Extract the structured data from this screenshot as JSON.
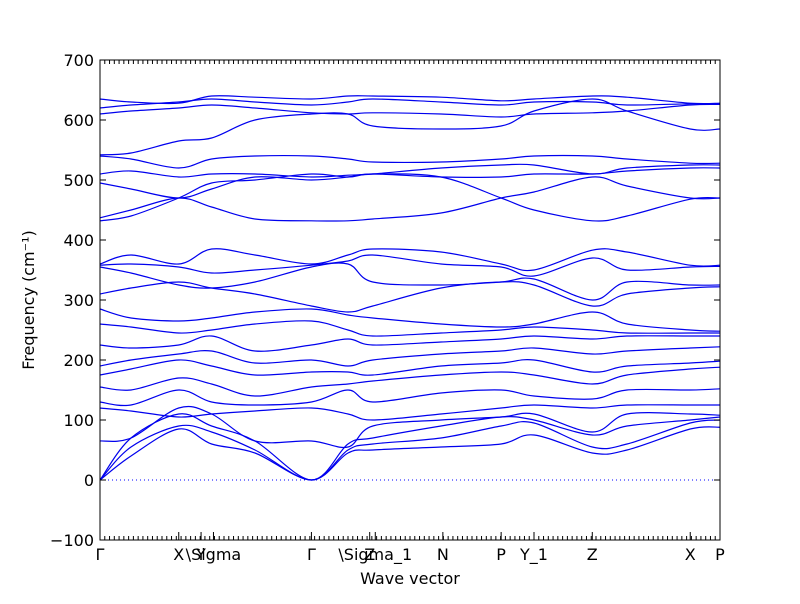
{
  "chart_data": {
    "type": "line",
    "title": "",
    "xlabel": "Wave vector",
    "ylabel": "Frequency (cm⁻¹)",
    "ylim": [
      -100,
      700
    ],
    "yticks": [
      -100,
      0,
      100,
      200,
      300,
      400,
      500,
      600,
      700
    ],
    "xlim": [
      0,
      1
    ],
    "high_symmetry_points": [
      {
        "label": "Γ",
        "x": 0.0
      },
      {
        "label": "X",
        "x": 0.127
      },
      {
        "label": "Y",
        "x": 0.163
      },
      {
        "label": "\\Sigma",
        "x": 0.183
      },
      {
        "label": "Γ",
        "x": 0.341
      },
      {
        "label": "Z",
        "x": 0.435
      },
      {
        "label": "\\Sigma_1",
        "x": 0.444
      },
      {
        "label": "N",
        "x": 0.553
      },
      {
        "label": "P",
        "x": 0.647
      },
      {
        "label": "Y_1",
        "x": 0.7
      },
      {
        "label": "Z",
        "x": 0.794
      },
      {
        "label": "X",
        "x": 0.952
      },
      {
        "label": "P",
        "x": 1.0
      }
    ],
    "zero_line": 0,
    "series": [
      {
        "x": [
          0,
          0.05,
          0.127,
          0.18,
          0.25,
          0.341,
          0.4,
          0.44,
          0.55,
          0.647,
          0.7,
          0.794,
          0.85,
          0.952,
          1.0
        ],
        "y": [
          0,
          40,
          85,
          60,
          45,
          0,
          45,
          50,
          55,
          60,
          75,
          45,
          50,
          85,
          88
        ]
      },
      {
        "x": [
          0,
          0.05,
          0.127,
          0.18,
          0.25,
          0.341,
          0.4,
          0.44,
          0.55,
          0.647,
          0.7,
          0.794,
          0.85,
          0.952,
          1.0
        ],
        "y": [
          0,
          55,
          90,
          80,
          50,
          0,
          50,
          60,
          70,
          90,
          95,
          55,
          60,
          95,
          100
        ]
      },
      {
        "x": [
          0,
          0.05,
          0.127,
          0.18,
          0.25,
          0.341,
          0.4,
          0.44,
          0.55,
          0.647,
          0.7,
          0.794,
          0.85,
          0.952,
          1.0
        ],
        "y": [
          0,
          70,
          110,
          90,
          65,
          0,
          60,
          70,
          90,
          105,
          100,
          75,
          90,
          100,
          105
        ]
      },
      {
        "x": [
          0,
          0.05,
          0.127,
          0.18,
          0.25,
          0.341,
          0.4,
          0.44,
          0.55,
          0.647,
          0.7,
          0.794,
          0.85,
          0.952,
          1.0
        ],
        "y": [
          65,
          70,
          120,
          110,
          65,
          65,
          55,
          90,
          100,
          105,
          110,
          80,
          110,
          110,
          108
        ]
      },
      {
        "x": [
          0,
          0.05,
          0.127,
          0.18,
          0.25,
          0.341,
          0.4,
          0.44,
          0.55,
          0.647,
          0.7,
          0.794,
          0.85,
          0.952,
          1.0
        ],
        "y": [
          120,
          115,
          105,
          110,
          115,
          120,
          110,
          100,
          110,
          120,
          125,
          120,
          125,
          125,
          125
        ]
      },
      {
        "x": [
          0,
          0.05,
          0.127,
          0.18,
          0.25,
          0.341,
          0.4,
          0.44,
          0.55,
          0.647,
          0.7,
          0.794,
          0.85,
          0.952,
          1.0
        ],
        "y": [
          130,
          125,
          150,
          130,
          125,
          130,
          150,
          130,
          145,
          150,
          140,
          135,
          150,
          150,
          152
        ]
      },
      {
        "x": [
          0,
          0.05,
          0.127,
          0.18,
          0.25,
          0.341,
          0.4,
          0.44,
          0.55,
          0.647,
          0.7,
          0.794,
          0.85,
          0.952,
          1.0
        ],
        "y": [
          155,
          150,
          170,
          160,
          140,
          155,
          160,
          165,
          175,
          180,
          175,
          160,
          175,
          185,
          188
        ]
      },
      {
        "x": [
          0,
          0.05,
          0.127,
          0.18,
          0.25,
          0.341,
          0.4,
          0.44,
          0.55,
          0.647,
          0.7,
          0.794,
          0.85,
          0.952,
          1.0
        ],
        "y": [
          175,
          185,
          200,
          190,
          175,
          180,
          180,
          175,
          190,
          195,
          200,
          180,
          190,
          195,
          198
        ]
      },
      {
        "x": [
          0,
          0.05,
          0.127,
          0.18,
          0.25,
          0.341,
          0.4,
          0.44,
          0.55,
          0.647,
          0.7,
          0.794,
          0.85,
          0.952,
          1.0
        ],
        "y": [
          190,
          200,
          210,
          215,
          195,
          200,
          190,
          200,
          210,
          215,
          220,
          210,
          215,
          220,
          222
        ]
      },
      {
        "x": [
          0,
          0.05,
          0.127,
          0.18,
          0.25,
          0.341,
          0.4,
          0.44,
          0.55,
          0.647,
          0.7,
          0.794,
          0.85,
          0.952,
          1.0
        ],
        "y": [
          225,
          220,
          225,
          240,
          215,
          225,
          235,
          225,
          230,
          235,
          240,
          235,
          240,
          240,
          240
        ]
      },
      {
        "x": [
          0,
          0.05,
          0.127,
          0.18,
          0.25,
          0.341,
          0.4,
          0.44,
          0.55,
          0.647,
          0.7,
          0.794,
          0.85,
          0.952,
          1.0
        ],
        "y": [
          260,
          255,
          245,
          250,
          260,
          265,
          250,
          240,
          245,
          250,
          255,
          250,
          245,
          245,
          245
        ]
      },
      {
        "x": [
          0,
          0.05,
          0.127,
          0.18,
          0.25,
          0.341,
          0.4,
          0.44,
          0.55,
          0.647,
          0.7,
          0.794,
          0.85,
          0.952,
          1.0
        ],
        "y": [
          285,
          270,
          265,
          270,
          280,
          285,
          275,
          270,
          260,
          255,
          260,
          280,
          260,
          250,
          248
        ]
      },
      {
        "x": [
          0,
          0.05,
          0.127,
          0.18,
          0.25,
          0.341,
          0.4,
          0.44,
          0.55,
          0.647,
          0.7,
          0.794,
          0.85,
          0.952,
          1.0
        ],
        "y": [
          310,
          320,
          330,
          320,
          310,
          290,
          280,
          290,
          320,
          330,
          325,
          290,
          310,
          320,
          322
        ]
      },
      {
        "x": [
          0,
          0.05,
          0.127,
          0.18,
          0.25,
          0.341,
          0.4,
          0.44,
          0.55,
          0.647,
          0.7,
          0.794,
          0.85,
          0.952,
          1.0
        ],
        "y": [
          355,
          345,
          325,
          320,
          330,
          355,
          360,
          330,
          325,
          330,
          335,
          300,
          330,
          325,
          325
        ]
      },
      {
        "x": [
          0,
          0.05,
          0.127,
          0.18,
          0.25,
          0.341,
          0.4,
          0.44,
          0.55,
          0.647,
          0.7,
          0.794,
          0.85,
          0.952,
          1.0
        ],
        "y": [
          358,
          360,
          355,
          345,
          350,
          358,
          365,
          375,
          360,
          355,
          340,
          370,
          350,
          355,
          356
        ]
      },
      {
        "x": [
          0,
          0.05,
          0.127,
          0.18,
          0.25,
          0.341,
          0.4,
          0.44,
          0.55,
          0.647,
          0.7,
          0.794,
          0.85,
          0.952,
          1.0
        ],
        "y": [
          360,
          375,
          360,
          385,
          375,
          360,
          375,
          385,
          380,
          360,
          350,
          383,
          380,
          358,
          358
        ]
      },
      {
        "x": [
          0,
          0.05,
          0.127,
          0.18,
          0.25,
          0.341,
          0.4,
          0.44,
          0.55,
          0.647,
          0.7,
          0.794,
          0.85,
          0.952,
          1.0
        ],
        "y": [
          432,
          440,
          470,
          495,
          500,
          510,
          505,
          510,
          505,
          470,
          450,
          432,
          440,
          468,
          470
        ]
      },
      {
        "x": [
          0,
          0.05,
          0.127,
          0.18,
          0.25,
          0.341,
          0.4,
          0.44,
          0.55,
          0.647,
          0.7,
          0.794,
          0.85,
          0.952,
          1.0
        ],
        "y": [
          437,
          450,
          470,
          455,
          435,
          432,
          432,
          435,
          445,
          470,
          480,
          505,
          490,
          470,
          470
        ]
      },
      {
        "x": [
          0,
          0.05,
          0.127,
          0.18,
          0.25,
          0.341,
          0.4,
          0.44,
          0.55,
          0.647,
          0.7,
          0.794,
          0.85,
          0.952,
          1.0
        ],
        "y": [
          495,
          485,
          470,
          485,
          505,
          500,
          505,
          510,
          505,
          505,
          510,
          510,
          515,
          520,
          520
        ]
      },
      {
        "x": [
          0,
          0.05,
          0.127,
          0.18,
          0.25,
          0.341,
          0.4,
          0.44,
          0.55,
          0.647,
          0.7,
          0.794,
          0.85,
          0.952,
          1.0
        ],
        "y": [
          510,
          515,
          505,
          510,
          510,
          505,
          508,
          510,
          520,
          525,
          525,
          510,
          520,
          525,
          525
        ]
      },
      {
        "x": [
          0,
          0.05,
          0.127,
          0.18,
          0.25,
          0.341,
          0.4,
          0.44,
          0.55,
          0.647,
          0.7,
          0.794,
          0.85,
          0.952,
          1.0
        ],
        "y": [
          540,
          535,
          520,
          535,
          540,
          540,
          535,
          530,
          530,
          535,
          540,
          540,
          535,
          528,
          528
        ]
      },
      {
        "x": [
          0,
          0.05,
          0.127,
          0.18,
          0.25,
          0.341,
          0.4,
          0.44,
          0.55,
          0.647,
          0.7,
          0.794,
          0.85,
          0.952,
          1.0
        ],
        "y": [
          542,
          545,
          565,
          570,
          600,
          610,
          610,
          590,
          585,
          590,
          615,
          635,
          615,
          585,
          585
        ]
      },
      {
        "x": [
          0,
          0.05,
          0.127,
          0.18,
          0.25,
          0.341,
          0.4,
          0.44,
          0.55,
          0.647,
          0.7,
          0.794,
          0.85,
          0.952,
          1.0
        ],
        "y": [
          610,
          615,
          620,
          625,
          620,
          612,
          610,
          612,
          610,
          605,
          610,
          612,
          615,
          625,
          626
        ]
      },
      {
        "x": [
          0,
          0.05,
          0.127,
          0.18,
          0.25,
          0.341,
          0.4,
          0.44,
          0.55,
          0.647,
          0.7,
          0.794,
          0.85,
          0.952,
          1.0
        ],
        "y": [
          620,
          625,
          630,
          635,
          630,
          625,
          630,
          635,
          630,
          625,
          630,
          630,
          625,
          627,
          627
        ]
      },
      {
        "x": [
          0,
          0.05,
          0.127,
          0.18,
          0.25,
          0.341,
          0.4,
          0.44,
          0.55,
          0.647,
          0.7,
          0.794,
          0.85,
          0.952,
          1.0
        ],
        "y": [
          635,
          630,
          628,
          640,
          638,
          635,
          640,
          640,
          638,
          632,
          635,
          640,
          638,
          628,
          628
        ]
      }
    ]
  }
}
